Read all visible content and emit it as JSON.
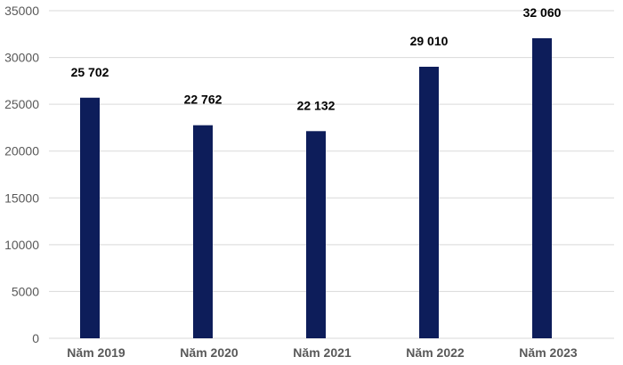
{
  "chart_data": {
    "type": "bar",
    "categories": [
      "Năm 2019",
      "Năm 2020",
      "Năm 2021",
      "Năm 2022",
      "Năm 2023"
    ],
    "values": [
      25702,
      22762,
      22132,
      29010,
      32060
    ],
    "data_labels": [
      "25 702",
      "22 762",
      "22 132",
      "29 010",
      "32 060"
    ],
    "y_ticks": [
      "0",
      "5000",
      "10000",
      "15000",
      "20000",
      "25000",
      "30000",
      "35000"
    ],
    "ylim": [
      0,
      35000
    ],
    "grid": true,
    "legend": "none",
    "title": "",
    "xlabel": "",
    "ylabel": "",
    "colors": {
      "bar": "#0d1d5a",
      "grid": "#d9d9d9",
      "tick_text": "#595959",
      "label_text": "#000000"
    }
  }
}
